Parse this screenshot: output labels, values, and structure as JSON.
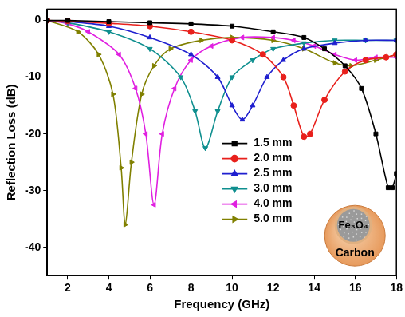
{
  "chart_data": {
    "type": "line",
    "x_label": "Frequency (GHz)",
    "y_label": "Reflection Loss (dB)",
    "xlim": [
      1,
      18
    ],
    "xticks": [
      2,
      4,
      6,
      8,
      10,
      12,
      14,
      16,
      18
    ],
    "ylim": [
      -45,
      2
    ],
    "yticks": [
      -40,
      -30,
      -20,
      -10,
      0
    ],
    "grid": false,
    "legend": "center",
    "annotations": [
      "Fe₃O₄",
      "Carbon"
    ],
    "series": [
      {
        "name": "1.5 mm",
        "color": "#000000",
        "marker": "square",
        "x": [
          1,
          2,
          4,
          6,
          8,
          10,
          12,
          13.5,
          14.5,
          15.5,
          16.3,
          17,
          17.6,
          17.8,
          18
        ],
        "values": [
          0,
          0,
          -0.2,
          -0.4,
          -0.6,
          -1,
          -2,
          -3,
          -5,
          -8,
          -12,
          -20,
          -29.5,
          -29.5,
          -27
        ]
      },
      {
        "name": "2.0 mm",
        "color": "#e8201c",
        "marker": "circle",
        "x": [
          1,
          2,
          4,
          6,
          8,
          10,
          11.5,
          12.5,
          13,
          13.5,
          13.8,
          14.5,
          15.5,
          16.5,
          17.5,
          18
        ],
        "values": [
          0,
          -0.1,
          -0.5,
          -1,
          -2,
          -3.5,
          -6,
          -10,
          -15,
          -20.5,
          -20,
          -14,
          -9,
          -7,
          -6.5,
          -6
        ]
      },
      {
        "name": "2.5 mm",
        "color": "#1f1fcf",
        "marker": "triangle-up",
        "x": [
          1,
          2,
          4,
          6,
          8,
          9.3,
          10,
          10.5,
          11,
          11.7,
          12.5,
          13.5,
          15,
          16.5,
          18
        ],
        "values": [
          0,
          -0.2,
          -1,
          -3,
          -6,
          -10,
          -15,
          -17.5,
          -15,
          -10,
          -7,
          -5,
          -4,
          -3.5,
          -3.5
        ]
      },
      {
        "name": "3.0 mm",
        "color": "#0f8f8f",
        "marker": "triangle-down",
        "x": [
          1,
          2,
          4,
          6,
          7.5,
          8.2,
          8.7,
          9.3,
          10,
          11,
          12,
          13.5,
          15,
          16.5,
          18
        ],
        "values": [
          0,
          -0.4,
          -2,
          -5,
          -10,
          -16,
          -22.5,
          -16,
          -10,
          -7,
          -5,
          -4,
          -3.5,
          -3.5,
          -3.5
        ]
      },
      {
        "name": "4.0 mm",
        "color": "#e020e0",
        "marker": "triangle-left",
        "x": [
          1,
          2,
          3,
          4.5,
          5.3,
          5.8,
          6.2,
          6.6,
          7.2,
          8,
          9,
          10.5,
          12,
          13,
          14,
          15,
          16,
          17,
          18
        ],
        "values": [
          0,
          -0.6,
          -2,
          -6,
          -12,
          -20,
          -32.5,
          -20,
          -12,
          -7,
          -4.5,
          -3,
          -3,
          -3.5,
          -4.5,
          -6,
          -7,
          -6.5,
          -6.5
        ]
      },
      {
        "name": "5.0 mm",
        "color": "#808000",
        "marker": "triangle-right",
        "x": [
          1,
          2.5,
          3.5,
          4.2,
          4.6,
          4.8,
          5.1,
          5.6,
          6.2,
          7,
          8.5,
          10,
          12,
          13.5,
          15,
          15.8,
          17,
          18
        ],
        "values": [
          0,
          -2,
          -6,
          -13,
          -26,
          -36,
          -25,
          -13,
          -8,
          -5,
          -3.5,
          -3,
          -3.5,
          -5,
          -7.5,
          -8,
          -7,
          -6
        ]
      }
    ]
  }
}
